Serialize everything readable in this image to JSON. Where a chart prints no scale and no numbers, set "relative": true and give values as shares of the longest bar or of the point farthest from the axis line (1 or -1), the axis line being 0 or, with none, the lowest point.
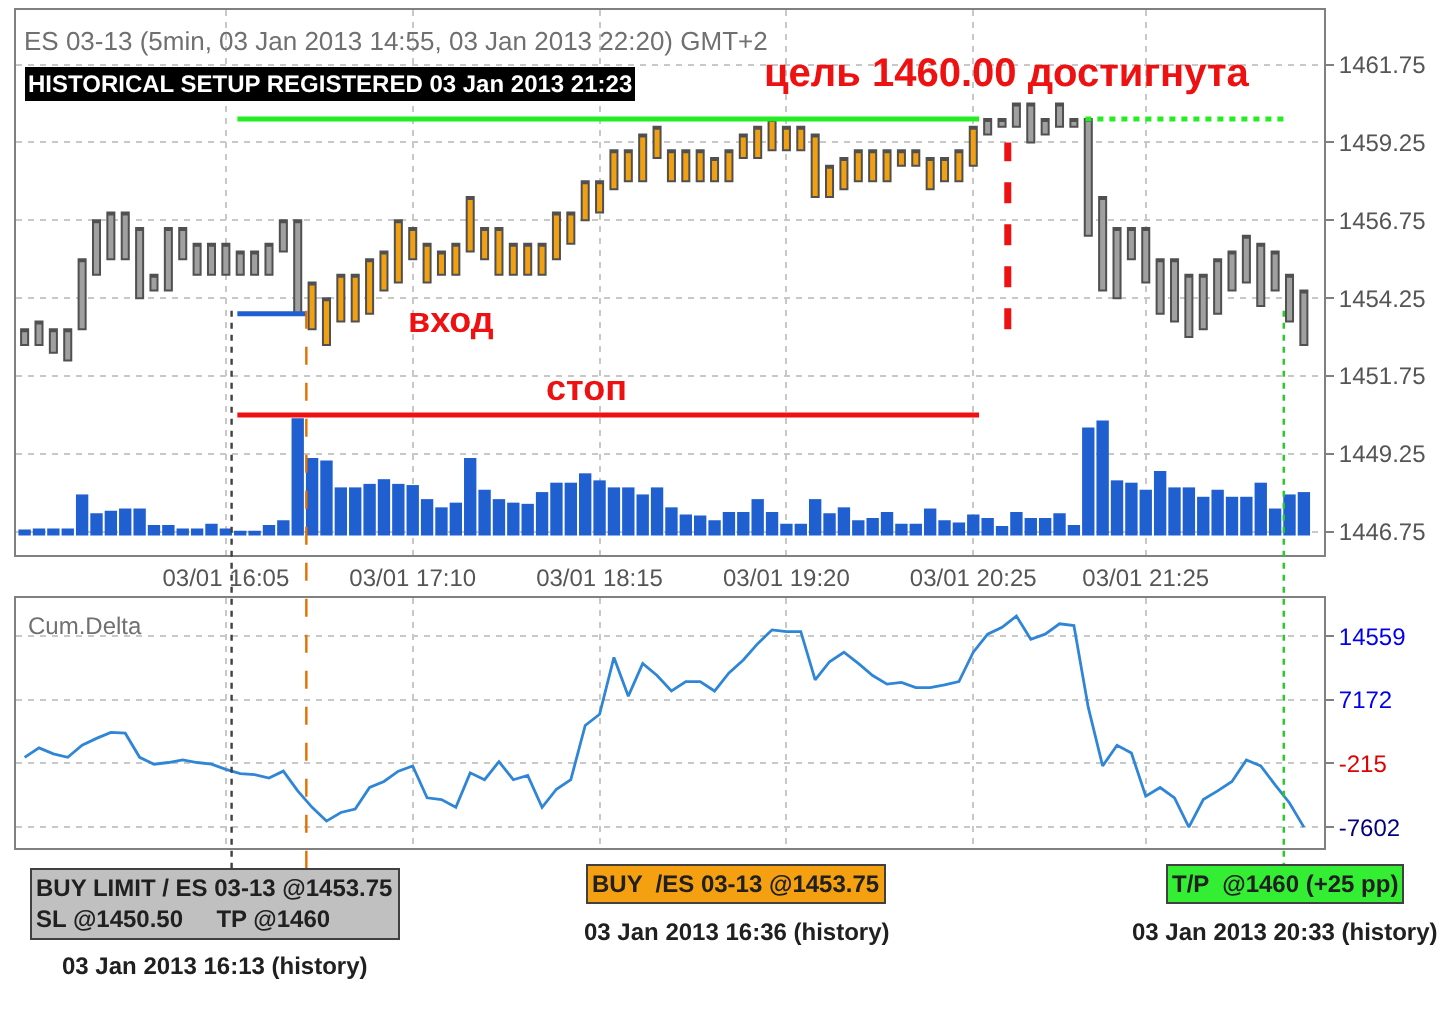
{
  "chart_data": [
    {
      "type": "candlestick",
      "title": "ES 03-13 (5min, 03 Jan 2013 14:55, 03 Jan 2013 22:20) GMT+2",
      "subtitle": "HISTORICAL SETUP REGISTERED 03 Jan 2013 21:23",
      "x": [
        "2013-01-03T14:55",
        "2013-01-03T15:00",
        "2013-01-03T15:05",
        "2013-01-03T15:10",
        "2013-01-03T15:15",
        "2013-01-03T15:20",
        "2013-01-03T15:25",
        "2013-01-03T15:30",
        "2013-01-03T15:35",
        "2013-01-03T15:40",
        "2013-01-03T15:45",
        "2013-01-03T15:50",
        "2013-01-03T15:55",
        "2013-01-03T16:00",
        "2013-01-03T16:05",
        "2013-01-03T16:10",
        "2013-01-03T16:15",
        "2013-01-03T16:20",
        "2013-01-03T16:25",
        "2013-01-03T16:30",
        "2013-01-03T16:35",
        "2013-01-03T16:40",
        "2013-01-03T16:45",
        "2013-01-03T16:50",
        "2013-01-03T16:55",
        "2013-01-03T17:00",
        "2013-01-03T17:05",
        "2013-01-03T17:10",
        "2013-01-03T17:15",
        "2013-01-03T17:20",
        "2013-01-03T17:25",
        "2013-01-03T17:30",
        "2013-01-03T17:35",
        "2013-01-03T17:40",
        "2013-01-03T17:45",
        "2013-01-03T17:50",
        "2013-01-03T17:55",
        "2013-01-03T18:00",
        "2013-01-03T18:05",
        "2013-01-03T18:10",
        "2013-01-03T18:15",
        "2013-01-03T18:20",
        "2013-01-03T18:25",
        "2013-01-03T18:30",
        "2013-01-03T18:35",
        "2013-01-03T18:40",
        "2013-01-03T18:45",
        "2013-01-03T18:50",
        "2013-01-03T18:55",
        "2013-01-03T19:00",
        "2013-01-03T19:05",
        "2013-01-03T19:10",
        "2013-01-03T19:15",
        "2013-01-03T19:20",
        "2013-01-03T19:25",
        "2013-01-03T19:30",
        "2013-01-03T19:35",
        "2013-01-03T19:40",
        "2013-01-03T19:45",
        "2013-01-03T19:50",
        "2013-01-03T19:55",
        "2013-01-03T20:00",
        "2013-01-03T20:05",
        "2013-01-03T20:10",
        "2013-01-03T20:15",
        "2013-01-03T20:20",
        "2013-01-03T20:25",
        "2013-01-03T20:30",
        "2013-01-03T20:35",
        "2013-01-03T20:40",
        "2013-01-03T20:45",
        "2013-01-03T20:50",
        "2013-01-03T20:55",
        "2013-01-03T21:00",
        "2013-01-03T21:05",
        "2013-01-03T21:10",
        "2013-01-03T21:15",
        "2013-01-03T21:20",
        "2013-01-03T21:25",
        "2013-01-03T21:30",
        "2013-01-03T21:35",
        "2013-01-03T21:40",
        "2013-01-03T21:45",
        "2013-01-03T21:50",
        "2013-01-03T21:55",
        "2013-01-03T22:00",
        "2013-01-03T22:05",
        "2013-01-03T22:10",
        "2013-01-03T22:15",
        "2013-01-03T22:20"
      ],
      "ohlc": [
        [
          1452.75,
          1453.25,
          1452.75,
          1453.25
        ],
        [
          1452.75,
          1453.5,
          1452.75,
          1453.5
        ],
        [
          1452.5,
          1453.25,
          1452.5,
          1453.25
        ],
        [
          1452.25,
          1453.25,
          1452.25,
          1453.25
        ],
        [
          1453.25,
          1455.5,
          1453.25,
          1455.5
        ],
        [
          1455,
          1456.75,
          1455,
          1456.75
        ],
        [
          1455.5,
          1457,
          1455.5,
          1457
        ],
        [
          1455.5,
          1457,
          1455.5,
          1457
        ],
        [
          1454.25,
          1456.5,
          1454.25,
          1456.5
        ],
        [
          1454.5,
          1455,
          1454.5,
          1455
        ],
        [
          1454.5,
          1456.5,
          1454.5,
          1456.5
        ],
        [
          1455.5,
          1456.5,
          1455.5,
          1456.5
        ],
        [
          1455,
          1456,
          1455,
          1456
        ],
        [
          1455,
          1456,
          1455,
          1456
        ],
        [
          1455,
          1456,
          1455,
          1456
        ],
        [
          1455,
          1455.75,
          1455,
          1455.75
        ],
        [
          1455,
          1455.75,
          1455,
          1455.75
        ],
        [
          1455,
          1456,
          1455,
          1456
        ],
        [
          1455.75,
          1456.75,
          1455.75,
          1456.75
        ],
        [
          1453.75,
          1456.75,
          1453.75,
          1456.75
        ],
        [
          1453.25,
          1454.75,
          1453.25,
          1454.75
        ],
        [
          1452.75,
          1454.25,
          1452.75,
          1454.25
        ],
        [
          1453.5,
          1455,
          1453.5,
          1455
        ],
        [
          1453.5,
          1455,
          1453.5,
          1455
        ],
        [
          1453.75,
          1455.5,
          1453.75,
          1455.5
        ],
        [
          1454.5,
          1455.75,
          1454.5,
          1455.75
        ],
        [
          1454.75,
          1456.75,
          1454.75,
          1456.75
        ],
        [
          1455.5,
          1456.5,
          1455.5,
          1456.5
        ],
        [
          1454.75,
          1456,
          1454.75,
          1456
        ],
        [
          1455,
          1455.75,
          1455,
          1455.75
        ],
        [
          1455,
          1456,
          1455,
          1456
        ],
        [
          1455.75,
          1457.5,
          1455.75,
          1457.5
        ],
        [
          1455.5,
          1456.5,
          1455.5,
          1456.5
        ],
        [
          1455,
          1456.5,
          1455,
          1456.5
        ],
        [
          1455,
          1456,
          1455,
          1456
        ],
        [
          1455,
          1456,
          1455,
          1456
        ],
        [
          1455,
          1456,
          1455,
          1456
        ],
        [
          1455.5,
          1457,
          1455.5,
          1457
        ],
        [
          1456,
          1457,
          1456,
          1457
        ],
        [
          1456.75,
          1458,
          1456.75,
          1458
        ],
        [
          1457,
          1458,
          1457,
          1458
        ],
        [
          1457.75,
          1459,
          1457.75,
          1459
        ],
        [
          1458,
          1459,
          1458,
          1459
        ],
        [
          1458,
          1459.5,
          1458,
          1459.5
        ],
        [
          1458.75,
          1459.75,
          1458.75,
          1459.75
        ],
        [
          1458,
          1459,
          1458,
          1459
        ],
        [
          1458,
          1459,
          1458,
          1459
        ],
        [
          1458,
          1459,
          1458,
          1459
        ],
        [
          1458,
          1458.75,
          1458,
          1458.75
        ],
        [
          1458,
          1459,
          1458,
          1459
        ],
        [
          1458.75,
          1459.5,
          1458.75,
          1459.5
        ],
        [
          1458.75,
          1459.75,
          1458.75,
          1459.75
        ],
        [
          1459,
          1460,
          1459,
          1460
        ],
        [
          1459,
          1459.75,
          1459,
          1459.75
        ],
        [
          1459,
          1459.75,
          1459,
          1459.75
        ],
        [
          1457.5,
          1459.5,
          1457.5,
          1459.5
        ],
        [
          1457.5,
          1458.5,
          1457.5,
          1458.5
        ],
        [
          1457.75,
          1458.75,
          1457.75,
          1458.75
        ],
        [
          1458,
          1459,
          1458,
          1459
        ],
        [
          1458,
          1459,
          1458,
          1459
        ],
        [
          1458,
          1459,
          1458,
          1459
        ],
        [
          1458.5,
          1459,
          1458.5,
          1459
        ],
        [
          1458.5,
          1459,
          1458.5,
          1459
        ],
        [
          1457.75,
          1458.75,
          1457.75,
          1458.75
        ],
        [
          1458,
          1458.75,
          1458,
          1458.75
        ],
        [
          1458,
          1459,
          1458,
          1459
        ],
        [
          1458.5,
          1459.75,
          1458.5,
          1459.75
        ],
        [
          1459.5,
          1460,
          1459.5,
          1460
        ],
        [
          1459.75,
          1460,
          1459.75,
          1460
        ],
        [
          1459.75,
          1460.5,
          1459.75,
          1460.5
        ],
        [
          1459.25,
          1460.5,
          1459.25,
          1460.5
        ],
        [
          1459.5,
          1460,
          1459.5,
          1460
        ],
        [
          1459.75,
          1460.5,
          1459.75,
          1460.5
        ],
        [
          1459.75,
          1460,
          1459.75,
          1460
        ],
        [
          1456.25,
          1460,
          1456.25,
          1460
        ],
        [
          1454.5,
          1457.5,
          1454.5,
          1457.5
        ],
        [
          1454.25,
          1456.5,
          1454.25,
          1456.5
        ],
        [
          1455.5,
          1456.5,
          1455.5,
          1456.5
        ],
        [
          1454.75,
          1456.5,
          1454.75,
          1456.5
        ],
        [
          1453.75,
          1455.5,
          1453.75,
          1455.5
        ],
        [
          1453.5,
          1455.5,
          1453.5,
          1455.5
        ],
        [
          1453,
          1455,
          1453,
          1455
        ],
        [
          1453.25,
          1455,
          1453.25,
          1455
        ],
        [
          1453.75,
          1455.5,
          1453.75,
          1455.5
        ],
        [
          1454.5,
          1455.75,
          1454.5,
          1455.75
        ],
        [
          1454.75,
          1456.25,
          1454.75,
          1456.25
        ],
        [
          1454,
          1456,
          1454,
          1456
        ],
        [
          1454.5,
          1455.75,
          1454.5,
          1455.75
        ],
        [
          1453.5,
          1455,
          1453.5,
          1455
        ],
        [
          1452.75,
          1454.5,
          1452.75,
          1454.5
        ]
      ],
      "colors": [
        "#a0a0a0",
        "#a0a0a0",
        "#a0a0a0",
        "#a0a0a0",
        "#a0a0a0",
        "#a0a0a0",
        "#a0a0a0",
        "#a0a0a0",
        "#a0a0a0",
        "#a0a0a0",
        "#a0a0a0",
        "#a0a0a0",
        "#a0a0a0",
        "#a0a0a0",
        "#a0a0a0",
        "#a0a0a0",
        "#a0a0a0",
        "#a0a0a0",
        "#a0a0a0",
        "#a0a0a0",
        "#f0a010",
        "#f0a010",
        "#f0a010",
        "#f0a010",
        "#f0a010",
        "#f0a010",
        "#f0a010",
        "#f0a010",
        "#f0a010",
        "#f0a010",
        "#f0a010",
        "#f0a010",
        "#f0a010",
        "#f0a010",
        "#f0a010",
        "#f0a010",
        "#f0a010",
        "#f0a010",
        "#f0a010",
        "#f0a010",
        "#f0a010",
        "#f0a010",
        "#f0a010",
        "#f0a010",
        "#f0a010",
        "#f0a010",
        "#f0a010",
        "#f0a010",
        "#f0a010",
        "#f0a010",
        "#f0a010",
        "#f0a010",
        "#f0a010",
        "#f0a010",
        "#f0a010",
        "#f0a010",
        "#f0a010",
        "#f0a010",
        "#f0a010",
        "#f0a010",
        "#f0a010",
        "#f0a010",
        "#f0a010",
        "#f0a010",
        "#f0a010",
        "#f0a010",
        "#f0a010",
        "#a0a0a0",
        "#a0a0a0",
        "#a0a0a0",
        "#a0a0a0",
        "#a0a0a0",
        "#a0a0a0",
        "#a0a0a0",
        "#a0a0a0",
        "#a0a0a0",
        "#a0a0a0",
        "#a0a0a0",
        "#a0a0a0",
        "#a0a0a0",
        "#a0a0a0",
        "#a0a0a0",
        "#a0a0a0",
        "#a0a0a0",
        "#a0a0a0",
        "#a0a0a0",
        "#a0a0a0",
        "#a0a0a0",
        "#a0a0a0",
        "#a0a0a0"
      ],
      "series": [
        {
          "type": "line",
          "color": "#22ee22",
          "x": [
            "2013-01-03T16:09",
            "2013-01-03T20:27"
          ],
          "values": [
            1460,
            1460
          ]
        },
        {
          "type": "line",
          "color": "#ee1111",
          "x": [
            "2013-01-03T16:09",
            "2013-01-03T20:27"
          ],
          "values": [
            1450.5,
            1450.5
          ]
        },
        {
          "type": "line",
          "color": "#1f5fd0",
          "x": [
            "2013-01-03T16:09",
            "2013-01-03T16:33"
          ],
          "values": [
            1453.75,
            1453.75
          ]
        },
        {
          "type": "line",
          "color": "#22ee22",
          "line_style": "dotted",
          "x": [
            "2013-01-03T21:04",
            "2013-01-03T22:13"
          ],
          "values": [
            1460,
            1460
          ]
        },
        {
          "type": "line",
          "color": "#ee1111",
          "line_style": "dashed",
          "x": [
            "2013-01-03T20:37",
            "2013-01-03T20:37"
          ],
          "values": [
            1453.25,
            1459.25
          ]
        }
      ],
      "xlim": [
        "2013-01-03T14:52",
        "2013-01-03T22:27"
      ],
      "xticks": [
        {
          "value": "2013-01-03T16:05",
          "label": "03/01 16:05"
        },
        {
          "value": "2013-01-03T17:10",
          "label": "03/01 17:10"
        },
        {
          "value": "2013-01-03T18:15",
          "label": "03/01 18:15"
        },
        {
          "value": "2013-01-03T19:20",
          "label": "03/01 19:20"
        },
        {
          "value": "2013-01-03T20:25",
          "label": "03/01 20:25"
        },
        {
          "value": "2013-01-03T21:25",
          "label": "03/01 21:25"
        }
      ],
      "ylim": [
        1446,
        1463.5
      ],
      "yticks": [
        1446.75,
        1449.25,
        1451.75,
        1454.25,
        1456.75,
        1459.25,
        1461.75
      ],
      "grid": true,
      "ref_lines": [
        {
          "axis": "x",
          "value": "2013-01-03T16:07",
          "color": "#404040",
          "line_style": "dotted"
        },
        {
          "axis": "x",
          "value": "2013-01-03T16:33",
          "color": "#e07000",
          "line_style": "dashed"
        },
        {
          "axis": "x",
          "value": "2013-01-03T22:13",
          "color": "#22cc22",
          "line_style": "dotted"
        }
      ],
      "annotations": [
        {
          "text": "цель 1460.00 достигнута",
          "x": "2013-01-03T20:37",
          "y": 1459.5
        },
        {
          "text": "стоп",
          "x": "2013-01-03T18:10",
          "y": 1450.5
        },
        "вход",
        "BUY LIMIT / ES 03-13 @1453.75\nSL @1450.50     TP @1460",
        "03 Jan 2013 16:13 (history)",
        "BUY  /ES 03-13 @1453.75",
        "03 Jan 2013 16:36 (history)",
        "T/P  @1460 (+25 pp)",
        "03 Jan 2013 20:33 (history)"
      ]
    },
    {
      "type": "bar",
      "relative": true,
      "color": "#1f5fd0",
      "tick_labels": false,
      "xlim": [
        "2013-01-03T14:52",
        "2013-01-03T22:27"
      ],
      "xticks": [
        {
          "value": "2013-01-03T16:05",
          "label": null
        },
        {
          "value": "2013-01-03T17:10",
          "label": null
        },
        {
          "value": "2013-01-03T18:15",
          "label": null
        },
        {
          "value": "2013-01-03T19:20",
          "label": null
        },
        {
          "value": "2013-01-03T20:25",
          "label": null
        },
        {
          "value": "2013-01-03T21:25",
          "label": null
        }
      ],
      "x": [
        "2013-01-03T14:55",
        "2013-01-03T15:00",
        "2013-01-03T15:05",
        "2013-01-03T15:10",
        "2013-01-03T15:15",
        "2013-01-03T15:20",
        "2013-01-03T15:25",
        "2013-01-03T15:30",
        "2013-01-03T15:35",
        "2013-01-03T15:40",
        "2013-01-03T15:45",
        "2013-01-03T15:50",
        "2013-01-03T15:55",
        "2013-01-03T16:00",
        "2013-01-03T16:05",
        "2013-01-03T16:10",
        "2013-01-03T16:15",
        "2013-01-03T16:20",
        "2013-01-03T16:25",
        "2013-01-03T16:30",
        "2013-01-03T16:35",
        "2013-01-03T16:40",
        "2013-01-03T16:45",
        "2013-01-03T16:50",
        "2013-01-03T16:55",
        "2013-01-03T17:00",
        "2013-01-03T17:05",
        "2013-01-03T17:10",
        "2013-01-03T17:15",
        "2013-01-03T17:20",
        "2013-01-03T17:25",
        "2013-01-03T17:30",
        "2013-01-03T17:35",
        "2013-01-03T17:40",
        "2013-01-03T17:45",
        "2013-01-03T17:50",
        "2013-01-03T17:55",
        "2013-01-03T18:00",
        "2013-01-03T18:05",
        "2013-01-03T18:10",
        "2013-01-03T18:15",
        "2013-01-03T18:20",
        "2013-01-03T18:25",
        "2013-01-03T18:30",
        "2013-01-03T18:35",
        "2013-01-03T18:40",
        "2013-01-03T18:45",
        "2013-01-03T18:50",
        "2013-01-03T18:55",
        "2013-01-03T19:00",
        "2013-01-03T19:05",
        "2013-01-03T19:10",
        "2013-01-03T19:15",
        "2013-01-03T19:20",
        "2013-01-03T19:25",
        "2013-01-03T19:30",
        "2013-01-03T19:35",
        "2013-01-03T19:40",
        "2013-01-03T19:45",
        "2013-01-03T19:50",
        "2013-01-03T19:55",
        "2013-01-03T20:00",
        "2013-01-03T20:05",
        "2013-01-03T20:10",
        "2013-01-03T20:15",
        "2013-01-03T20:20",
        "2013-01-03T20:25",
        "2013-01-03T20:30",
        "2013-01-03T20:35",
        "2013-01-03T20:40",
        "2013-01-03T20:45",
        "2013-01-03T20:50",
        "2013-01-03T20:55",
        "2013-01-03T21:00",
        "2013-01-03T21:05",
        "2013-01-03T21:10",
        "2013-01-03T21:15",
        "2013-01-03T21:20",
        "2013-01-03T21:25",
        "2013-01-03T21:30",
        "2013-01-03T21:35",
        "2013-01-03T21:40",
        "2013-01-03T21:45",
        "2013-01-03T21:50",
        "2013-01-03T21:55",
        "2013-01-03T22:00",
        "2013-01-03T22:05",
        "2013-01-03T22:10",
        "2013-01-03T22:15",
        "2013-01-03T22:20"
      ],
      "values": [
        0.05,
        0.06,
        0.06,
        0.06,
        0.35,
        0.19,
        0.21,
        0.23,
        0.23,
        0.09,
        0.09,
        0.06,
        0.06,
        0.1,
        0.06,
        0.04,
        0.04,
        0.09,
        0.13,
        1,
        0.66,
        0.64,
        0.41,
        0.41,
        0.44,
        0.48,
        0.44,
        0.43,
        0.31,
        0.24,
        0.28,
        0.66,
        0.39,
        0.31,
        0.28,
        0.27,
        0.37,
        0.45,
        0.45,
        0.53,
        0.47,
        0.41,
        0.41,
        0.35,
        0.41,
        0.24,
        0.18,
        0.17,
        0.13,
        0.2,
        0.2,
        0.31,
        0.2,
        0.1,
        0.1,
        0.31,
        0.19,
        0.24,
        0.13,
        0.15,
        0.2,
        0.1,
        0.1,
        0.23,
        0.13,
        0.11,
        0.18,
        0.15,
        0.08,
        0.2,
        0.15,
        0.15,
        0.19,
        0.09,
        0.92,
        0.98,
        0.47,
        0.45,
        0.39,
        0.55,
        0.41,
        0.41,
        0.33,
        0.39,
        0.33,
        0.33,
        0.45,
        0.23,
        0.35,
        0.37
      ]
    },
    {
      "type": "line",
      "title": "Cum.Delta",
      "color": "#2f86d6",
      "tick_labels": "y",
      "grid": true,
      "xlim": [
        "2013-01-03T14:52",
        "2013-01-03T22:27"
      ],
      "xticks": [
        {
          "value": "2013-01-03T16:05",
          "label": null
        },
        {
          "value": "2013-01-03T17:10",
          "label": null
        },
        {
          "value": "2013-01-03T18:15",
          "label": null
        },
        {
          "value": "2013-01-03T19:20",
          "label": null
        },
        {
          "value": "2013-01-03T20:25",
          "label": null
        },
        {
          "value": "2013-01-03T21:25",
          "label": null
        }
      ],
      "x": [
        "2013-01-03T14:55",
        "2013-01-03T15:00",
        "2013-01-03T15:05",
        "2013-01-03T15:10",
        "2013-01-03T15:15",
        "2013-01-03T15:20",
        "2013-01-03T15:25",
        "2013-01-03T15:30",
        "2013-01-03T15:35",
        "2013-01-03T15:40",
        "2013-01-03T15:45",
        "2013-01-03T15:50",
        "2013-01-03T15:55",
        "2013-01-03T16:00",
        "2013-01-03T16:05",
        "2013-01-03T16:10",
        "2013-01-03T16:15",
        "2013-01-03T16:20",
        "2013-01-03T16:25",
        "2013-01-03T16:30",
        "2013-01-03T16:35",
        "2013-01-03T16:40",
        "2013-01-03T16:45",
        "2013-01-03T16:50",
        "2013-01-03T16:55",
        "2013-01-03T17:00",
        "2013-01-03T17:05",
        "2013-01-03T17:10",
        "2013-01-03T17:15",
        "2013-01-03T17:20",
        "2013-01-03T17:25",
        "2013-01-03T17:30",
        "2013-01-03T17:35",
        "2013-01-03T17:40",
        "2013-01-03T17:45",
        "2013-01-03T17:50",
        "2013-01-03T17:55",
        "2013-01-03T18:00",
        "2013-01-03T18:05",
        "2013-01-03T18:10",
        "2013-01-03T18:15",
        "2013-01-03T18:20",
        "2013-01-03T18:25",
        "2013-01-03T18:30",
        "2013-01-03T18:35",
        "2013-01-03T18:40",
        "2013-01-03T18:45",
        "2013-01-03T18:50",
        "2013-01-03T18:55",
        "2013-01-03T19:00",
        "2013-01-03T19:05",
        "2013-01-03T19:10",
        "2013-01-03T19:15",
        "2013-01-03T19:20",
        "2013-01-03T19:25",
        "2013-01-03T19:30",
        "2013-01-03T19:35",
        "2013-01-03T19:40",
        "2013-01-03T19:45",
        "2013-01-03T19:50",
        "2013-01-03T19:55",
        "2013-01-03T20:00",
        "2013-01-03T20:05",
        "2013-01-03T20:10",
        "2013-01-03T20:15",
        "2013-01-03T20:20",
        "2013-01-03T20:25",
        "2013-01-03T20:30",
        "2013-01-03T20:35",
        "2013-01-03T20:40",
        "2013-01-03T20:45",
        "2013-01-03T20:50",
        "2013-01-03T20:55",
        "2013-01-03T21:00",
        "2013-01-03T21:05",
        "2013-01-03T21:10",
        "2013-01-03T21:15",
        "2013-01-03T21:20",
        "2013-01-03T21:25",
        "2013-01-03T21:30",
        "2013-01-03T21:35",
        "2013-01-03T21:40",
        "2013-01-03T21:45",
        "2013-01-03T21:50",
        "2013-01-03T21:55",
        "2013-01-03T22:00",
        "2013-01-03T22:05",
        "2013-01-03T22:10",
        "2013-01-03T22:15",
        "2013-01-03T22:20"
      ],
      "values": [
        500,
        1600,
        900,
        500,
        1900,
        2700,
        3400,
        3300,
        500,
        -300,
        -100,
        200,
        -100,
        -300,
        -900,
        -1400,
        -1500,
        -1900,
        -1100,
        -3400,
        -5300,
        -6900,
        -5900,
        -5500,
        -3000,
        -2300,
        -1100,
        -500,
        -4200,
        -4400,
        -5300,
        -1300,
        -2100,
        0,
        -2100,
        -1600,
        -5300,
        -3200,
        -2100,
        4200,
        5500,
        12100,
        7600,
        11400,
        10000,
        8200,
        9300,
        9300,
        8200,
        10300,
        11800,
        13700,
        15300,
        15100,
        15100,
        9500,
        11600,
        12700,
        11400,
        10000,
        9000,
        9200,
        8600,
        8600,
        8900,
        9300,
        12700,
        14800,
        15600,
        16900,
        14200,
        14800,
        16000,
        15800,
        6300,
        -500,
        1900,
        1000,
        -4000,
        -3000,
        -4200,
        -7600,
        -4400,
        -3400,
        -2300,
        200,
        -500,
        -2700,
        -4800,
        -7600
      ],
      "ylim": [
        -10000,
        19000
      ],
      "yticks": [
        -7602,
        -215,
        7172,
        14559
      ]
    }
  ]
}
